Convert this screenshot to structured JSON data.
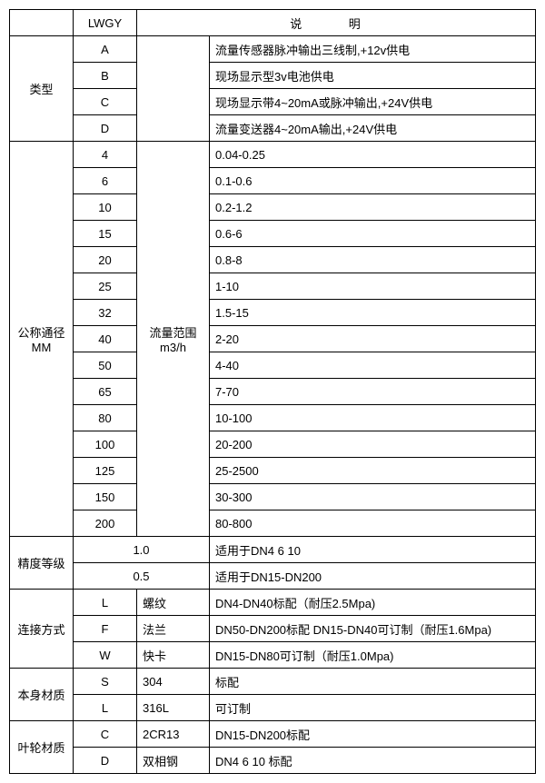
{
  "header": {
    "lwgy": "LWGY",
    "shuoming": "说 明"
  },
  "type": {
    "label": "类型",
    "rows": [
      {
        "code": "A",
        "desc": "流量传感器脉冲输出三线制,+12v供电"
      },
      {
        "code": "B",
        "desc": "现场显示型3v电池供电"
      },
      {
        "code": "C",
        "desc": "现场显示带4~20mA或脉冲输出,+24V供电"
      },
      {
        "code": "D",
        "desc": "流量变送器4~20mA输出,+24V供电"
      }
    ]
  },
  "dn": {
    "label1": "公称通径",
    "label2": "MM",
    "rangeLabel1": "流量范围",
    "rangeLabel2": "m3/h",
    "rows": [
      {
        "size": "4",
        "range": "0.04-0.25"
      },
      {
        "size": "6",
        "range": "0.1-0.6"
      },
      {
        "size": "10",
        "range": "0.2-1.2"
      },
      {
        "size": "15",
        "range": "0.6-6"
      },
      {
        "size": "20",
        "range": "0.8-8"
      },
      {
        "size": "25",
        "range": "1-10"
      },
      {
        "size": "32",
        "range": "1.5-15"
      },
      {
        "size": "40",
        "range": "2-20"
      },
      {
        "size": "50",
        "range": "4-40"
      },
      {
        "size": "65",
        "range": "7-70"
      },
      {
        "size": "80",
        "range": "10-100"
      },
      {
        "size": "100",
        "range": "20-200"
      },
      {
        "size": "125",
        "range": "25-2500"
      },
      {
        "size": "150",
        "range": "30-300"
      },
      {
        "size": "200",
        "range": "80-800"
      }
    ]
  },
  "accuracy": {
    "label": "精度等级",
    "rows": [
      {
        "val": "1.0",
        "desc": "适用于DN4  6  10"
      },
      {
        "val": "0.5",
        "desc": "适用于DN15-DN200"
      }
    ]
  },
  "conn": {
    "label": "连接方式",
    "rows": [
      {
        "code": "L",
        "name": "螺纹",
        "desc": "DN4-DN40标配（耐压2.5Mpa)"
      },
      {
        "code": "F",
        "name": "法兰",
        "desc": "DN50-DN200标配 DN15-DN40可订制（耐压1.6Mpa)"
      },
      {
        "code": "W",
        "name": "快卡",
        "desc": "DN15-DN80可订制（耐压1.0Mpa)"
      }
    ]
  },
  "body": {
    "label": "本身材质",
    "rows": [
      {
        "code": "S",
        "name": "304",
        "desc": "标配"
      },
      {
        "code": "L",
        "name": "316L",
        "desc": "可订制"
      }
    ]
  },
  "impeller": {
    "label": "叶轮材质",
    "rows": [
      {
        "code": "C",
        "name": "2CR13",
        "desc": "DN15-DN200标配"
      },
      {
        "code": "D",
        "name": "双相钢",
        "desc": "DN4 6 10 标配"
      }
    ]
  }
}
